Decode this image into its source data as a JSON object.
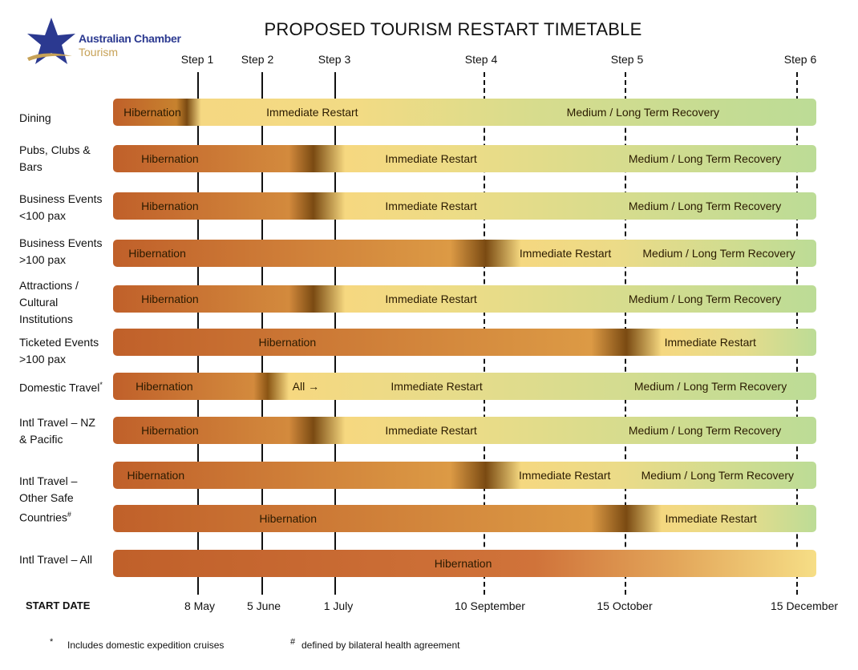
{
  "logo": {
    "line1": "Australian Chamber",
    "line2": "Tourism"
  },
  "title": "PROPOSED TOURISM RESTART TIMETABLE",
  "start_date_label": "START DATE",
  "steps": [
    {
      "label": "Step 1",
      "date": "8 May",
      "line": "solid"
    },
    {
      "label": "Step 2",
      "date": "5 June",
      "line": "solid"
    },
    {
      "label": "Step 3",
      "date": "1 July",
      "line": "solid"
    },
    {
      "label": "Step 4",
      "date": "10 September",
      "line": "dash"
    },
    {
      "label": "Step 5",
      "date": "15 October",
      "line": "dash"
    },
    {
      "label": "Step 6",
      "date": "15 December",
      "line": "dash"
    }
  ],
  "phase_colors": {
    "hibernation": "#c0602a",
    "transition": "#7a4a12",
    "restart": "#f4d97c",
    "recovery": "#bfdb93"
  },
  "rows": [
    {
      "label": "Dining",
      "segments": [
        {
          "text": "Hibernation",
          "at": 0.015
        },
        {
          "text": "Immediate Restart",
          "at": 0.218
        },
        {
          "text": "Medium / Long Term Recovery",
          "at": 0.645
        }
      ]
    },
    {
      "label": "Pubs, Clubs &\nBars",
      "segments": [
        {
          "text": "Hibernation",
          "at": 0.04
        },
        {
          "text": "Immediate Restart",
          "at": 0.387
        },
        {
          "text": "Medium / Long Term Recovery",
          "at": 0.733
        }
      ]
    },
    {
      "label": "Business Events\n<100 pax",
      "segments": [
        {
          "text": "Hibernation",
          "at": 0.04
        },
        {
          "text": "Immediate Restart",
          "at": 0.387
        },
        {
          "text": "Medium / Long Term Recovery",
          "at": 0.733
        }
      ]
    },
    {
      "label": "Business Events\n>100 pax",
      "segments": [
        {
          "text": "Hibernation",
          "at": 0.022
        },
        {
          "text": "Immediate Restart",
          "at": 0.578
        },
        {
          "text": "Medium / Long Term Recovery",
          "at": 0.753
        }
      ]
    },
    {
      "label": "Attractions /\nCultural\nInstitutions",
      "segments": [
        {
          "text": "Hibernation",
          "at": 0.04
        },
        {
          "text": "Immediate Restart",
          "at": 0.387
        },
        {
          "text": "Medium / Long Term Recovery",
          "at": 0.733
        }
      ]
    },
    {
      "label": "Ticketed Events\n>100 pax",
      "segments": [
        {
          "text": "Hibernation",
          "at": 0.207
        },
        {
          "text": "Immediate Restart",
          "at": 0.784
        }
      ]
    },
    {
      "label": "Domestic Travel",
      "footnote_mark": "*",
      "segments": [
        {
          "text": "Hibernation",
          "at": 0.032
        },
        {
          "text": "All →",
          "at": 0.255
        },
        {
          "text": "Immediate Restart",
          "at": 0.395
        },
        {
          "text": "Medium / Long Term Recovery",
          "at": 0.741
        }
      ]
    },
    {
      "label": "Intl Travel – NZ\n& Pacific",
      "segments": [
        {
          "text": "Hibernation",
          "at": 0.04
        },
        {
          "text": "Immediate Restart",
          "at": 0.387
        },
        {
          "text": "Medium / Long Term Recovery",
          "at": 0.733
        }
      ]
    },
    {
      "label": "Intl Travel –\nOther Safe\nCountries",
      "footnote_mark": "#",
      "segments": [
        {
          "text": "Hibernation",
          "at": 0.02
        },
        {
          "text": "Immediate Restart",
          "at": 0.577
        },
        {
          "text": "Medium / Long Term Recovery",
          "at": 0.751
        }
      ]
    },
    {
      "label": "",
      "segments": [
        {
          "text": "Hibernation",
          "at": 0.208
        },
        {
          "text": "Immediate Restart",
          "at": 0.785
        }
      ]
    },
    {
      "label": "Intl Travel – All",
      "segments": [
        {
          "text": "Hibernation",
          "at": 0.457
        }
      ]
    }
  ],
  "footnotes": [
    {
      "mark": "*",
      "text": "Includes domestic expedition cruises"
    },
    {
      "mark": "#",
      "text": "defined by bilateral health agreement"
    }
  ]
}
